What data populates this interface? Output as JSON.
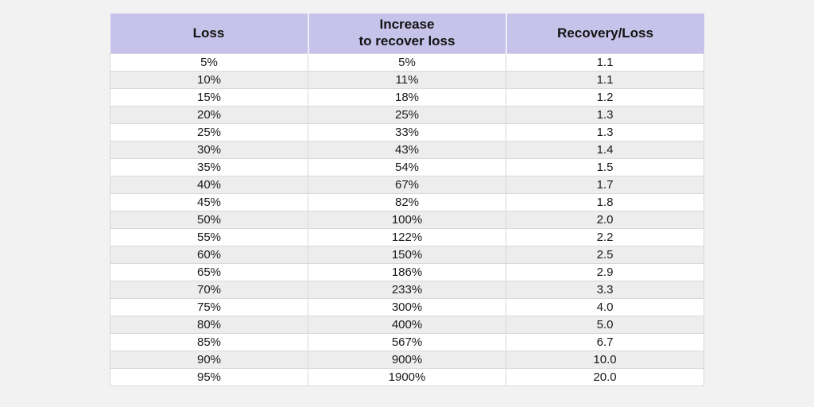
{
  "colors": {
    "page_bg": "#f2f2f3",
    "header_bg": "#c6c2ea",
    "header_separator": "#efeef8",
    "row_bg": "#ffffff",
    "row_alt_bg": "#ededed",
    "border": "#d9d9d9",
    "text": "#1a1a1a"
  },
  "chart_data": {
    "type": "table",
    "title": "",
    "columns": [
      "Loss",
      "Increase\nto recover loss",
      "Recovery/Loss"
    ],
    "rows": [
      [
        "5%",
        "5%",
        "1.1"
      ],
      [
        "10%",
        "11%",
        "1.1"
      ],
      [
        "15%",
        "18%",
        "1.2"
      ],
      [
        "20%",
        "25%",
        "1.3"
      ],
      [
        "25%",
        "33%",
        "1.3"
      ],
      [
        "30%",
        "43%",
        "1.4"
      ],
      [
        "35%",
        "54%",
        "1.5"
      ],
      [
        "40%",
        "67%",
        "1.7"
      ],
      [
        "45%",
        "82%",
        "1.8"
      ],
      [
        "50%",
        "100%",
        "2.0"
      ],
      [
        "55%",
        "122%",
        "2.2"
      ],
      [
        "60%",
        "150%",
        "2.5"
      ],
      [
        "65%",
        "186%",
        "2.9"
      ],
      [
        "70%",
        "233%",
        "3.3"
      ],
      [
        "75%",
        "300%",
        "4.0"
      ],
      [
        "80%",
        "400%",
        "5.0"
      ],
      [
        "85%",
        "567%",
        "6.7"
      ],
      [
        "90%",
        "900%",
        "10.0"
      ],
      [
        "95%",
        "1900%",
        "20.0"
      ]
    ]
  }
}
